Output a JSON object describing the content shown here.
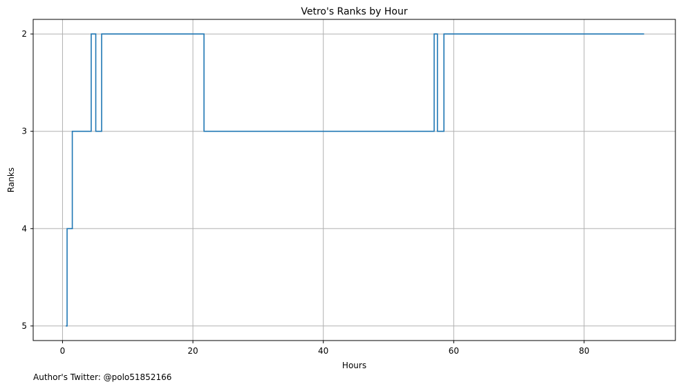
{
  "chart_data": {
    "type": "line",
    "step": "post",
    "title": "Vetro's Ranks by Hour",
    "xlabel": "Hours",
    "ylabel": "Ranks",
    "xlim": [
      -4.5,
      94
    ],
    "ylim": [
      5.15,
      1.85
    ],
    "y_inverted": true,
    "xticks": [
      0,
      20,
      40,
      60,
      80
    ],
    "yticks": [
      2,
      3,
      4,
      5
    ],
    "grid": true,
    "line_color": "#1f77b4",
    "series": [
      {
        "x": [
          0.5,
          0.7,
          1.5,
          4.4,
          5.1,
          6.0,
          21.7,
          57.0,
          57.5,
          58.5,
          89.2
        ],
        "y": [
          5,
          4,
          3,
          2,
          3,
          2,
          3,
          2,
          3,
          2,
          2
        ]
      }
    ]
  },
  "footnote": "Author's Twitter: @polo51852166"
}
